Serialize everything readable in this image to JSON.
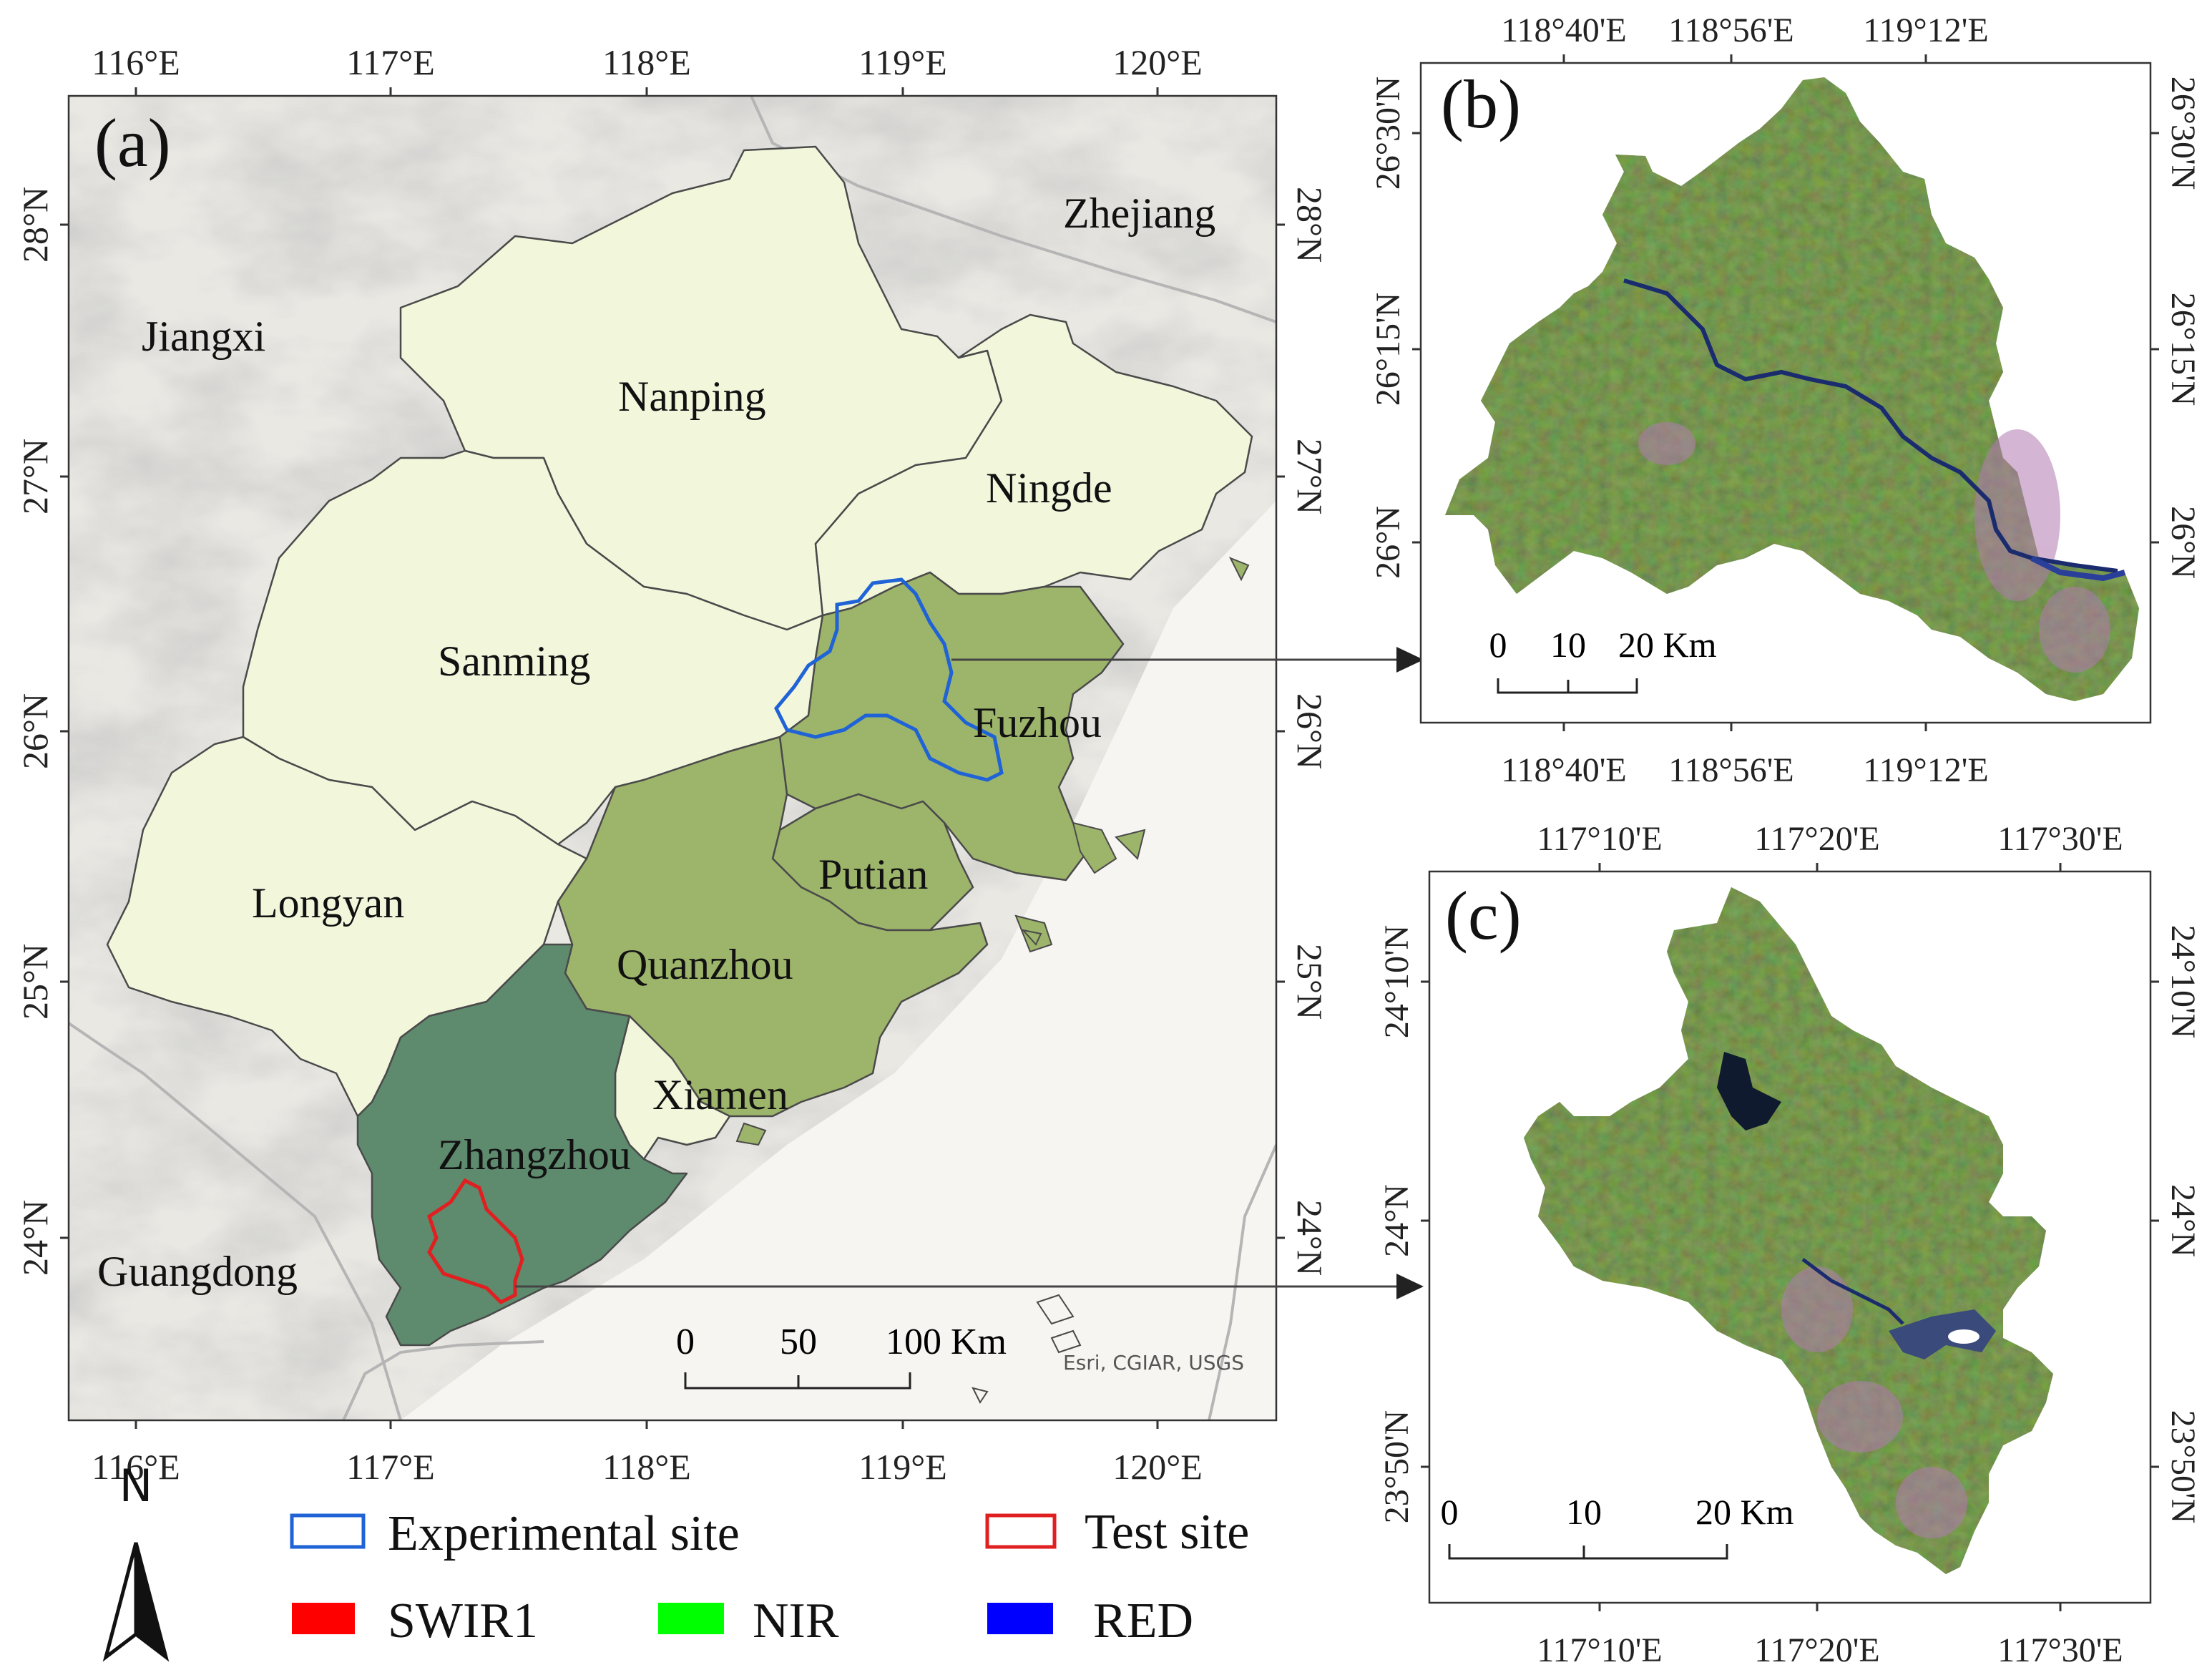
{
  "panel_a": {
    "label": "(a)",
    "lon_ticks": [
      "116°E",
      "117°E",
      "118°E",
      "119°E",
      "120°E"
    ],
    "lat_ticks": [
      "28°N",
      "27°N",
      "26°N",
      "25°N",
      "24°N"
    ],
    "places": {
      "zhejiang": "Zhejiang",
      "jiangxi": "Jiangxi",
      "guangdong": "Guangdong",
      "nanping": "Nanping",
      "ningde": "Ningde",
      "sanming": "Sanming",
      "fuzhou": "Fuzhou",
      "longyan": "Longyan",
      "putian": "Putian",
      "quanzhou": "Quanzhou",
      "xiamen": "Xiamen",
      "zhangzhou": "Zhangzhou"
    },
    "scale": {
      "t0": "0",
      "t1": "50",
      "t2": "100 Km"
    },
    "attribution": "Esri, CGIAR, USGS",
    "colors": {
      "light_region": "#f2f7dc",
      "mid_region": "#9db46b",
      "dark_region": "#5e8a6e",
      "experimental": "#1f63d6",
      "test": "#e02020"
    }
  },
  "panel_b": {
    "label": "(b)",
    "lon_ticks": [
      "118°40'E",
      "118°56'E",
      "119°12'E"
    ],
    "lat_ticks": [
      "26°30'N",
      "26°15'N",
      "26°N"
    ],
    "scale": {
      "t0": "0",
      "t1": "10",
      "t2": "20 Km"
    }
  },
  "panel_c": {
    "label": "(c)",
    "lon_ticks": [
      "117°10'E",
      "117°20'E",
      "117°30'E"
    ],
    "lat_ticks": [
      "24°10'N",
      "24°N",
      "23°50'N"
    ],
    "scale": {
      "t0": "0",
      "t1": "10",
      "t2": "20 Km"
    }
  },
  "north_arrow": "N",
  "legend": {
    "experimental": "Experimental site",
    "test": "Test site",
    "swir1": "SWIR1",
    "nir": "NIR",
    "red": "RED",
    "colors": {
      "swir1": "#ff0000",
      "nir": "#00ff00",
      "red": "#0000ff"
    }
  }
}
